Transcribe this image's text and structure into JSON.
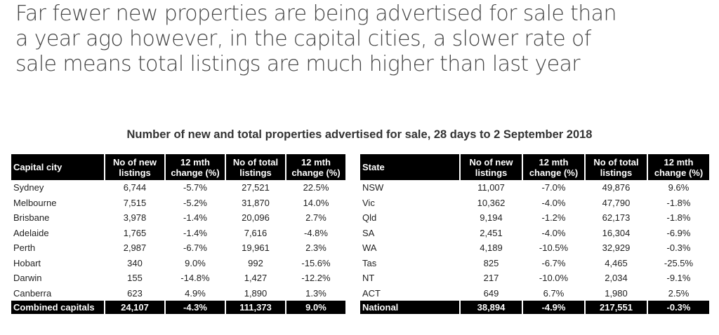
{
  "headline": {
    "lines": [
      "Far fewer new properties are being advertised for sale than",
      "a year ago however, in the capital cities, a slower rate of",
      "sale means total listings are much higher than last year"
    ]
  },
  "subtitle": "Number of new and total properties advertised for sale, 28 days to 2 September 2018",
  "capitals_table": {
    "headers": [
      "Capital city",
      "No of new listings",
      "12 mth change (%)",
      "No of total listings",
      "12 mth change (%)"
    ],
    "rows": [
      [
        "Sydney",
        "6,744",
        "-5.7%",
        "27,521",
        "22.5%"
      ],
      [
        "Melbourne",
        "7,515",
        "-5.2%",
        "31,870",
        "14.0%"
      ],
      [
        "Brisbane",
        "3,978",
        "-1.4%",
        "20,096",
        "2.7%"
      ],
      [
        "Adelaide",
        "1,765",
        "-1.4%",
        "7,616",
        "-4.8%"
      ],
      [
        "Perth",
        "2,987",
        "-6.7%",
        "19,961",
        "2.3%"
      ],
      [
        "Hobart",
        "340",
        "9.0%",
        "992",
        "-15.6%"
      ],
      [
        "Darwin",
        "155",
        "-14.8%",
        "1,427",
        "-12.2%"
      ],
      [
        "Canberra",
        "623",
        "4.9%",
        "1,890",
        "1.3%"
      ]
    ],
    "total": [
      "Combined capitals",
      "24,107",
      "-4.3%",
      "111,373",
      "9.0%"
    ]
  },
  "states_table": {
    "headers": [
      "State",
      "No of new listings",
      "12 mth change (%)",
      "No of total listings",
      "12 mth change (%)"
    ],
    "rows": [
      [
        "NSW",
        "11,007",
        "-7.0%",
        "49,876",
        "9.6%"
      ],
      [
        "Vic",
        "10,362",
        "-4.0%",
        "47,790",
        "-1.8%"
      ],
      [
        "Qld",
        "9,194",
        "-1.2%",
        "62,173",
        "-1.8%"
      ],
      [
        "SA",
        "2,451",
        "-4.0%",
        "16,304",
        "-6.9%"
      ],
      [
        "WA",
        "4,189",
        "-10.5%",
        "32,929",
        "-0.3%"
      ],
      [
        "Tas",
        "825",
        "-6.7%",
        "4,465",
        "-25.5%"
      ],
      [
        "NT",
        "217",
        "-10.0%",
        "2,034",
        "-9.1%"
      ],
      [
        "ACT",
        "649",
        "6.7%",
        "1,980",
        "2.5%"
      ]
    ],
    "total": [
      "National",
      "38,894",
      "-4.9%",
      "217,551",
      "-0.3%"
    ]
  },
  "colors": {
    "header_bg": "#000000",
    "header_text": "#ffffff",
    "headline_text": "#444444"
  }
}
